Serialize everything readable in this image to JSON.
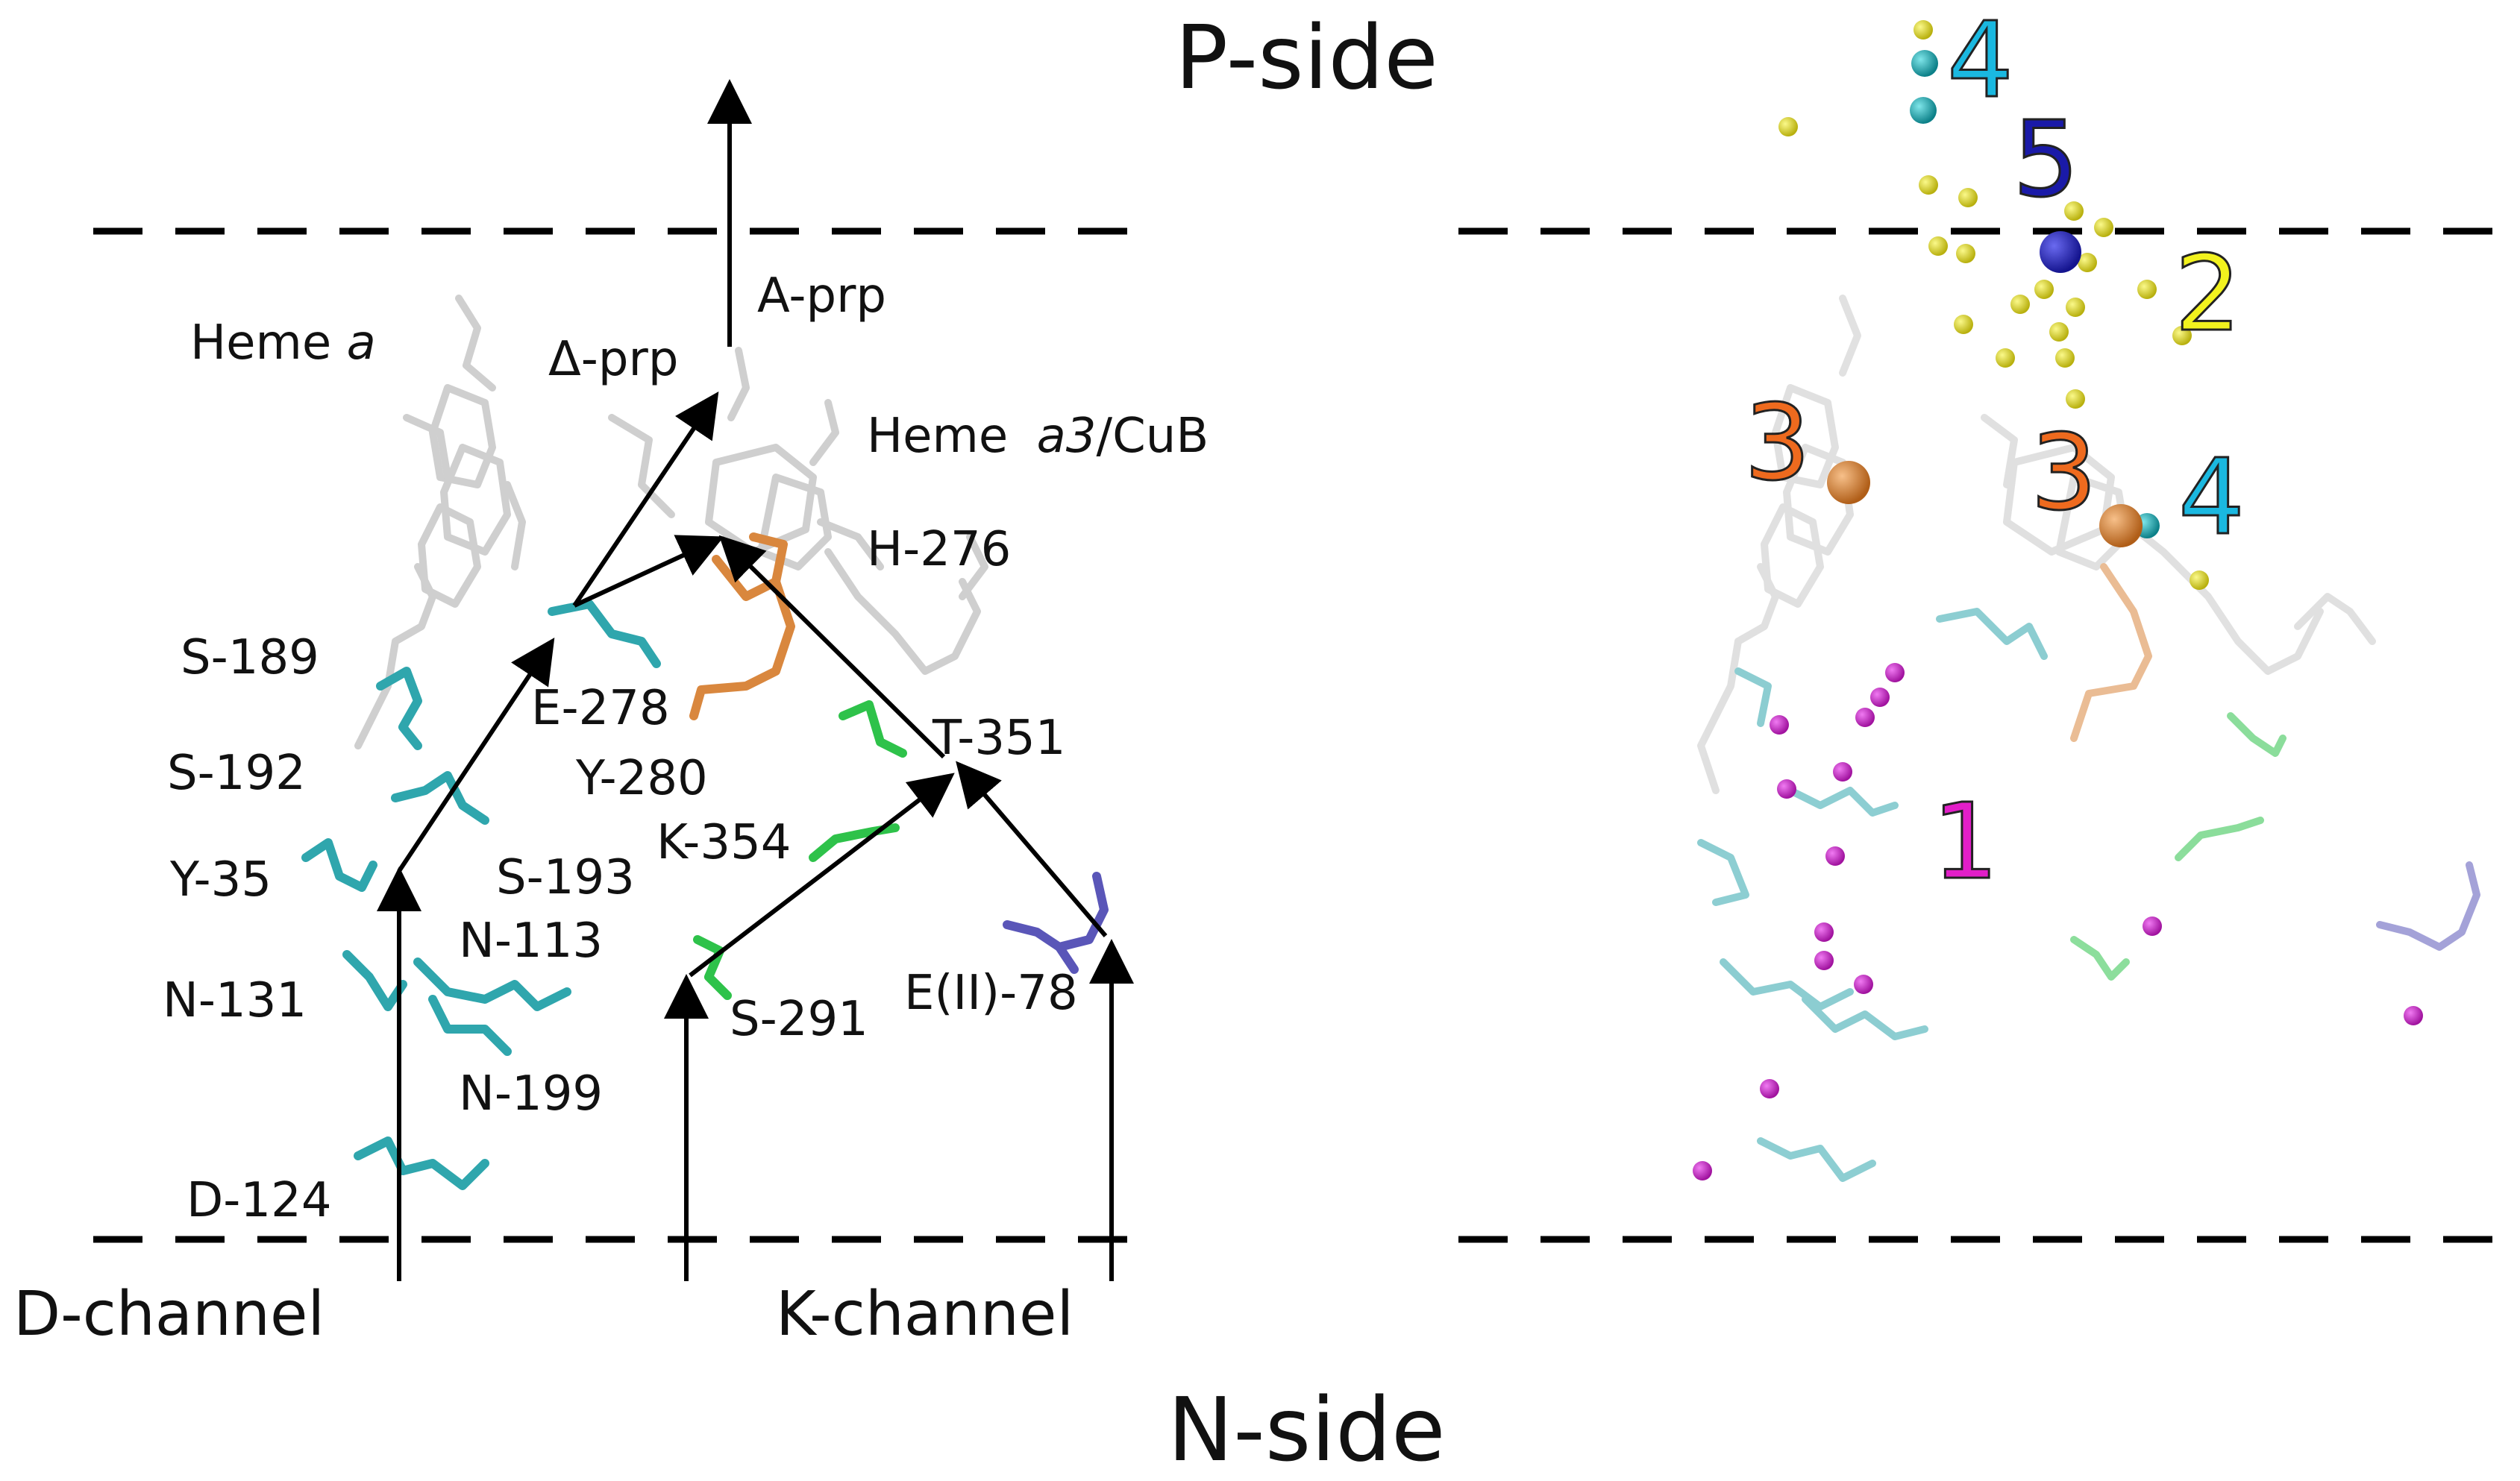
{
  "sides": {
    "top": "P-side",
    "bottom": "N-side"
  },
  "channels": {
    "d": "D-channel",
    "k": "K-channel"
  },
  "residue_labels": {
    "heme_a_prefix": "Heme ",
    "heme_a_italic": "a",
    "a_prp": "A-prp",
    "d_prp": "Δ-prp",
    "heme_a3_prefix": "Heme ",
    "heme_a3_italic": "a3",
    "heme_a3_suffix": "/CuB",
    "h276": "H-276",
    "s189": "S-189",
    "e278": "E-278",
    "s192": "S-192",
    "y280": "Y-280",
    "t351": "T-351",
    "k354": "K-354",
    "y35": "Y-35",
    "s193": "S-193",
    "n113": "N-113",
    "n131": "N-131",
    "s291": "S-291",
    "e78": "E(II)-78",
    "n199": "N-199",
    "d124": "D-124"
  },
  "site_numbers": [
    {
      "id": "site-4-top",
      "text": "4",
      "color": "#1ab8e0"
    },
    {
      "id": "site-5",
      "text": "5",
      "color": "#1a1aa8"
    },
    {
      "id": "site-2",
      "text": "2",
      "color": "#f2f21e"
    },
    {
      "id": "site-3-left",
      "text": "3",
      "color": "#ee6a1e"
    },
    {
      "id": "site-3-right",
      "text": "3",
      "color": "#ee6a1e"
    },
    {
      "id": "site-4-right",
      "text": "4",
      "color": "#1ab8e0"
    },
    {
      "id": "site-1",
      "text": "1",
      "color": "#e21ec8"
    }
  ],
  "colors": {
    "cyan_residue": "#2fa6ad",
    "orange_residue": "#d9873e",
    "green_residue": "#2ec24a",
    "purple_residue": "#5a56b8",
    "heme": "#cfcfcf",
    "magenta_sphere": "#c21ec8",
    "yellow_sphere": "#e8e22a",
    "blue_sphere": "#2222c8",
    "teal_sphere": "#18a8b0",
    "orange_sphere": "#e08a3a"
  }
}
